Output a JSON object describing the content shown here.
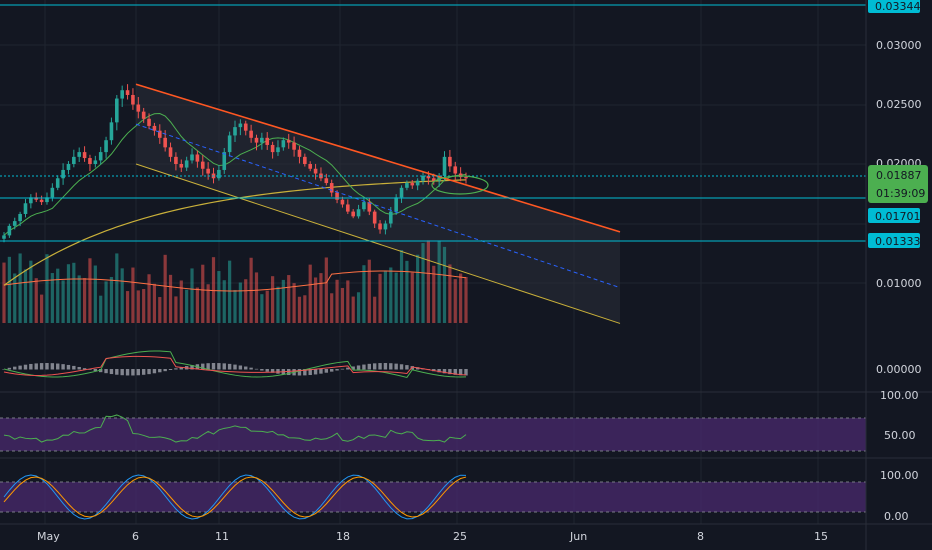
{
  "colors": {
    "background": "#131722",
    "grid": "#1f2430",
    "up": "#26a69a",
    "down": "#ef5350",
    "level_line": "#00bcd4",
    "trend_upper": "#ff5722",
    "trend_lower": "#c9b03a",
    "mid_dash": "#2962ff",
    "ma_long": "#c9b03a",
    "ma_short": "#4caf50",
    "volume_ma": "#ff7043",
    "panel_purple": "#4a2a6e",
    "rsi_line": "#4caf50",
    "stoch_k": "#2196f3",
    "stoch_d": "#ff9800",
    "macd_line": "#4caf50",
    "signal_line": "#ef5350",
    "tag_price": "#4caf50",
    "tag_level": "#00bcd4"
  },
  "price_axis": {
    "ticks": [
      "0.03000",
      "0.02500",
      "0.02000",
      "0.01000"
    ],
    "tick_values": [
      0.03,
      0.025,
      0.02,
      0.01
    ]
  },
  "tags": {
    "top_level": "0.03344",
    "last_price": "0.01887",
    "countdown": "01:39:09",
    "level_mid": "0.01701",
    "level_low": "0.01333"
  },
  "macd_axis": {
    "ticks": [
      "0.00000"
    ]
  },
  "rsi_axis": {
    "ticks": [
      "100.00",
      "50.00"
    ]
  },
  "stoch_axis": {
    "ticks": [
      "100.00",
      "0.00"
    ]
  },
  "time_axis": {
    "labels": [
      "May",
      "6",
      "11",
      "18",
      "25",
      "Jun",
      "8",
      "15"
    ]
  },
  "chart_data": {
    "type": "candlestick",
    "levels": [
      0.03344,
      0.01887,
      0.01701,
      0.01333
    ],
    "trendlines": {
      "upper": {
        "from": [
          "May 6",
          0.0267
        ],
        "to": [
          "Jun 3",
          0.0143
        ]
      },
      "lower": {
        "from": [
          "May 6",
          0.02
        ],
        "to": [
          "Jun 3",
          0.0066
        ]
      }
    },
    "candles_summary": {
      "start": "Apr 28",
      "end": "May 25",
      "open_first": 0.014,
      "high": 0.0267,
      "high_date": "May 6",
      "low_late": 0.0143,
      "low_date": "May 21",
      "last": 0.01887
    },
    "close_path": [
      0.014,
      0.0148,
      0.0152,
      0.0158,
      0.0167,
      0.0172,
      0.017,
      0.0168,
      0.0172,
      0.018,
      0.0188,
      0.0195,
      0.02,
      0.0206,
      0.021,
      0.0205,
      0.02,
      0.0203,
      0.021,
      0.022,
      0.0235,
      0.0255,
      0.0262,
      0.0258,
      0.025,
      0.0244,
      0.0238,
      0.0232,
      0.0228,
      0.0222,
      0.0214,
      0.0206,
      0.02,
      0.0197,
      0.0203,
      0.0208,
      0.0202,
      0.0196,
      0.0192,
      0.0188,
      0.0195,
      0.021,
      0.0224,
      0.0231,
      0.0234,
      0.0228,
      0.0222,
      0.0218,
      0.0222,
      0.0216,
      0.021,
      0.0214,
      0.022,
      0.0218,
      0.0212,
      0.0206,
      0.02,
      0.0196,
      0.0192,
      0.0188,
      0.0184,
      0.0176,
      0.017,
      0.0166,
      0.016,
      0.0156,
      0.0162,
      0.0168,
      0.016,
      0.015,
      0.0145,
      0.015,
      0.016,
      0.0172,
      0.018,
      0.0184,
      0.0182,
      0.0186,
      0.019,
      0.0188,
      0.0186,
      0.019,
      0.0206,
      0.0198,
      0.0192,
      0.0189,
      0.0188
    ]
  }
}
